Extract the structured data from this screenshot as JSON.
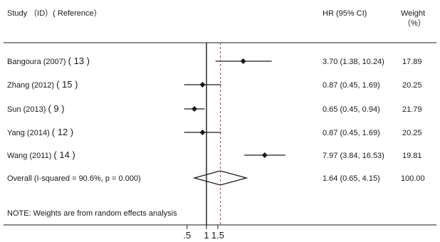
{
  "chart_data": {
    "type": "forest",
    "headers": {
      "study": "Study （ID）( Reference）",
      "estimate": "HR (95% CI)",
      "weight_line1": "Weight",
      "weight_line2": "（%）"
    },
    "studies": [
      {
        "label": "Bangoura (2007)",
        "ref": "( 13 )",
        "hr": 3.7,
        "lo": 1.38,
        "hi": 10.24,
        "ci_text": "3.70 (1.38, 10.24)",
        "weight": "17.89"
      },
      {
        "label": "Zhang (2012)",
        "ref": "( 15 )",
        "hr": 0.87,
        "lo": 0.45,
        "hi": 1.69,
        "ci_text": "0.87 (0.45, 1.69)",
        "weight": "20.25"
      },
      {
        "label": "Sun (2013)",
        "ref": "( 9 )",
        "hr": 0.65,
        "lo": 0.45,
        "hi": 0.94,
        "ci_text": "0.65 (0.45, 0.94)",
        "weight": "21.79"
      },
      {
        "label": "Yang (2014)",
        "ref": "( 12 )",
        "hr": 0.87,
        "lo": 0.45,
        "hi": 1.69,
        "ci_text": "0.87 (0.45, 1.69)",
        "weight": "20.25"
      },
      {
        "label": "Wang (2011)",
        "ref": "( 14 )",
        "hr": 7.97,
        "lo": 3.84,
        "hi": 16.53,
        "ci_text": "7.97 (3.84, 16.53)",
        "weight": "19.81"
      }
    ],
    "overall": {
      "label": "Overall  (I-squared = 90.6%, p = 0.000)",
      "hr": 1.64,
      "lo": 0.65,
      "hi": 4.15,
      "ci_text": "1.64 (0.65, 4.15)",
      "weight": "100.00"
    },
    "note": "NOTE: Weights are from random effects analysis",
    "x_ticks": [
      {
        "value": 0.5,
        "label": ".5"
      },
      {
        "value": 1,
        "label": "1"
      },
      {
        "value": 1.5,
        "label": "1.5"
      }
    ],
    "null_line": 1,
    "colors": {
      "ink": "#1a1a1a",
      "overall_line": "#c0392b"
    }
  }
}
